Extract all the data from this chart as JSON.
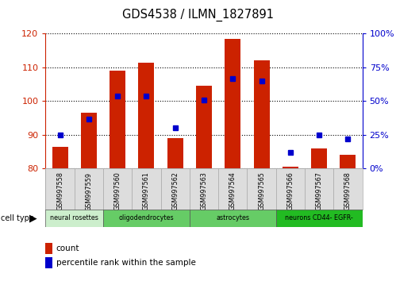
{
  "title": "GDS4538 / ILMN_1827891",
  "samples": [
    "GSM997558",
    "GSM997559",
    "GSM997560",
    "GSM997561",
    "GSM997562",
    "GSM997563",
    "GSM997564",
    "GSM997565",
    "GSM997566",
    "GSM997567",
    "GSM997568"
  ],
  "counts": [
    86.5,
    96.5,
    109.0,
    111.5,
    89.0,
    104.5,
    118.5,
    112.0,
    80.5,
    86.0,
    84.0
  ],
  "percentiles": [
    25.0,
    37.0,
    54.0,
    54.0,
    30.0,
    51.0,
    67.0,
    65.0,
    12.0,
    25.0,
    22.0
  ],
  "ylim_left": [
    80,
    120
  ],
  "ylim_right": [
    0,
    100
  ],
  "yticks_left": [
    80,
    90,
    100,
    110,
    120
  ],
  "yticks_right": [
    0,
    25,
    50,
    75,
    100
  ],
  "bar_color": "#cc2200",
  "dot_color": "#0000cc",
  "bar_bottom": 80,
  "bar_width": 0.55,
  "ct_data": [
    {
      "label": "neural rosettes",
      "start": 0,
      "end": 1,
      "color": "#cceecc"
    },
    {
      "label": "oligodendrocytes",
      "start": 2,
      "end": 4,
      "color": "#66cc66"
    },
    {
      "label": "astrocytes",
      "start": 5,
      "end": 7,
      "color": "#66cc66"
    },
    {
      "label": "neurons CD44- EGFR-",
      "start": 8,
      "end": 10,
      "color": "#22bb22"
    }
  ],
  "legend_count_color": "#cc2200",
  "legend_pct_color": "#0000cc"
}
